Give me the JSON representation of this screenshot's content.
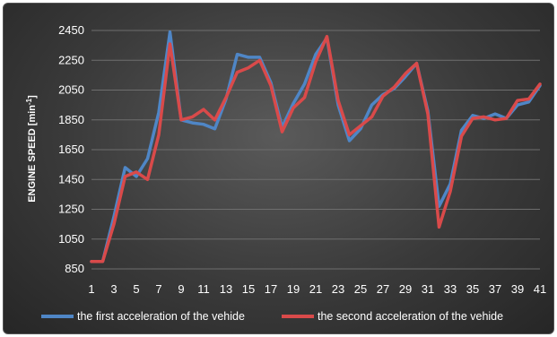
{
  "chart_data": {
    "type": "line",
    "title": "",
    "xlabel": "",
    "ylabel_main": "ENGINE SPEED [min",
    "ylabel_sup": "-1",
    "ylabel_close": "]",
    "ylim": [
      850,
      2450
    ],
    "yticks": [
      850,
      1050,
      1250,
      1450,
      1650,
      1850,
      2050,
      2250,
      2450
    ],
    "xticks": [
      1,
      3,
      5,
      7,
      9,
      11,
      13,
      15,
      17,
      19,
      21,
      23,
      25,
      27,
      29,
      31,
      33,
      35,
      37,
      39,
      41
    ],
    "grid": true,
    "legend_position": "bottom",
    "x": [
      1,
      2,
      3,
      4,
      5,
      6,
      7,
      8,
      9,
      10,
      11,
      12,
      13,
      14,
      15,
      16,
      17,
      18,
      19,
      20,
      21,
      22,
      23,
      24,
      25,
      26,
      27,
      28,
      29,
      30,
      31,
      32,
      33,
      34,
      35,
      36,
      37,
      38,
      39,
      40,
      41
    ],
    "series": [
      {
        "name": "the first acceleration of the vehide",
        "color": "#4f86c6",
        "values": [
          900,
          900,
          1200,
          1530,
          1470,
          1590,
          1900,
          2440,
          1850,
          1830,
          1820,
          1790,
          1990,
          2290,
          2270,
          2270,
          2100,
          1800,
          1960,
          2090,
          2290,
          2400,
          1950,
          1710,
          1790,
          1950,
          2020,
          2060,
          2140,
          2230,
          1910,
          1270,
          1420,
          1780,
          1880,
          1860,
          1890,
          1860,
          1950,
          1970,
          2080
        ]
      },
      {
        "name": "the second acceleration of the vehide",
        "color": "#d94a4a",
        "values": [
          900,
          900,
          1150,
          1470,
          1500,
          1450,
          1750,
          2360,
          1850,
          1870,
          1920,
          1850,
          2000,
          2170,
          2200,
          2250,
          2080,
          1770,
          1930,
          2000,
          2240,
          2410,
          1980,
          1750,
          1810,
          1870,
          2010,
          2070,
          2160,
          2230,
          1890,
          1130,
          1370,
          1740,
          1860,
          1870,
          1850,
          1860,
          1980,
          1990,
          2090
        ]
      }
    ]
  }
}
